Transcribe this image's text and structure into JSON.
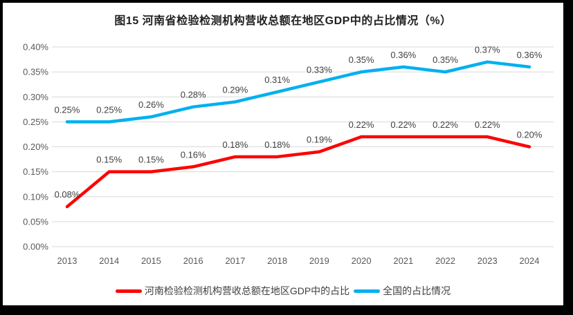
{
  "frame": {
    "border_color": "#000000",
    "background_color": "#FFFFFF"
  },
  "chart_data": {
    "type": "line",
    "title": "图15  河南省检验检测机构营收总额在地区GDP中的占比情况（%）",
    "xlabel": "",
    "ylabel": "",
    "categories": [
      "2013",
      "2014",
      "2015",
      "2016",
      "2017",
      "2018",
      "2019",
      "2020",
      "2021",
      "2022",
      "2023",
      "2024"
    ],
    "y_axis": {
      "min": 0.0,
      "max": 0.4,
      "tick_step": 0.05,
      "ticks": [
        {
          "value": 0.0,
          "label": "0.00%"
        },
        {
          "value": 0.05,
          "label": "0.05%"
        },
        {
          "value": 0.1,
          "label": "0.10%"
        },
        {
          "value": 0.15,
          "label": "0.15%"
        },
        {
          "value": 0.2,
          "label": "0.20%"
        },
        {
          "value": 0.25,
          "label": "0.25%"
        },
        {
          "value": 0.3,
          "label": "0.30%"
        },
        {
          "value": 0.35,
          "label": "0.35%"
        },
        {
          "value": 0.4,
          "label": "0.40%"
        }
      ]
    },
    "series": [
      {
        "id": "henan",
        "name": "河南检验检测机构营收总额在地区GDP中的占比",
        "color": "#FE0000",
        "values": [
          0.08,
          0.15,
          0.15,
          0.16,
          0.18,
          0.18,
          0.19,
          0.22,
          0.22,
          0.22,
          0.22,
          0.2
        ],
        "labels": [
          "0.08%",
          "0.15%",
          "0.15%",
          "0.16%",
          "0.18%",
          "0.18%",
          "0.19%",
          "0.22%",
          "0.22%",
          "0.22%",
          "0.22%",
          "0.20%"
        ]
      },
      {
        "id": "national",
        "name": "全国的占比情况",
        "color": "#00B0F0",
        "values": [
          0.25,
          0.25,
          0.26,
          0.28,
          0.29,
          0.31,
          0.33,
          0.35,
          0.36,
          0.35,
          0.37,
          0.36
        ],
        "labels": [
          "0.25%",
          "0.25%",
          "0.26%",
          "0.28%",
          "0.29%",
          "0.31%",
          "0.33%",
          "0.35%",
          "0.36%",
          "0.35%",
          "0.37%",
          "0.36%"
        ]
      }
    ],
    "grid": true,
    "gridline_color": "#D9D9D9",
    "legend_position": "bottom"
  }
}
